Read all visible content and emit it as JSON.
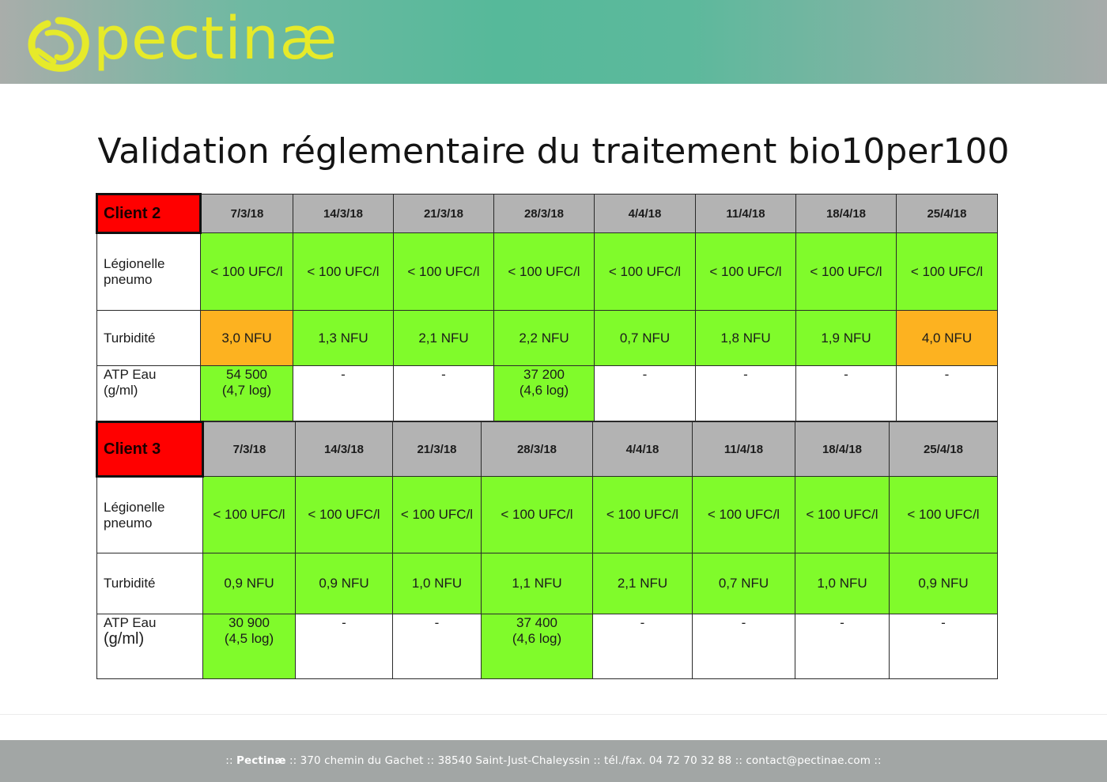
{
  "brand": {
    "name": "pectinæ",
    "logo_color": "#e6ea2a"
  },
  "title": "Validation réglementaire du traitement bio10per100",
  "colors": {
    "ok": "#80fb2b",
    "warning": "#fdb220",
    "client": "#ff0000",
    "header": "#b3b3b3"
  },
  "client2": {
    "name": "Client 2",
    "dates": [
      "7/3/18",
      "14/3/18",
      "21/3/18",
      "28/3/18",
      "4/4/18",
      "11/4/18",
      "18/4/18",
      "25/4/18"
    ],
    "legionelle": {
      "label_line1": "Légionelle",
      "label_line2": "pneumo",
      "values": [
        "< 100 UFC/l",
        "< 100 UFC/l",
        "< 100 UFC/l",
        "< 100 UFC/l",
        "< 100 UFC/l",
        "< 100 UFC/l",
        "< 100 UFC/l",
        "< 100 UFC/l"
      ]
    },
    "turbidite": {
      "label": "Turbidité",
      "values": [
        "3,0 NFU",
        "1,3 NFU",
        "2,1 NFU",
        "2,2 NFU",
        "0,7 NFU",
        "1,8 NFU",
        "1,9 NFU",
        "4,0 NFU"
      ],
      "status": [
        "warning",
        "ok",
        "ok",
        "ok",
        "ok",
        "ok",
        "ok",
        "warning"
      ]
    },
    "atp": {
      "label_line1": "ATP Eau",
      "label_line2": "(g/ml)",
      "values": [
        {
          "line1": "54 500",
          "line2": "(4,7 log)"
        },
        {
          "line1": "-",
          "line2": ""
        },
        {
          "line1": "-",
          "line2": ""
        },
        {
          "line1": "37 200",
          "line2": "(4,6 log)"
        },
        {
          "line1": "-",
          "line2": ""
        },
        {
          "line1": "-",
          "line2": ""
        },
        {
          "line1": "-",
          "line2": ""
        },
        {
          "line1": "-",
          "line2": ""
        }
      ]
    }
  },
  "client3": {
    "name": "Client 3",
    "dates": [
      "7/3/18",
      "14/3/18",
      "21/3/18",
      "28/3/18",
      "4/4/18",
      "11/4/18",
      "18/4/18",
      "25/4/18"
    ],
    "legionelle": {
      "label_line1": "Légionelle",
      "label_line2": "pneumo",
      "values": [
        "< 100 UFC/l",
        "< 100 UFC/l",
        "< 100 UFC/l",
        "< 100 UFC/l",
        "< 100 UFC/l",
        "< 100 UFC/l",
        "< 100 UFC/l",
        "< 100 UFC/l"
      ]
    },
    "turbidite": {
      "label": "Turbidité",
      "values": [
        "0,9 NFU",
        "0,9 NFU",
        "1,0 NFU",
        "1,1 NFU",
        "2,1 NFU",
        "0,7 NFU",
        "1,0 NFU",
        "0,9 NFU"
      ],
      "status": [
        "ok",
        "ok",
        "ok",
        "ok",
        "ok",
        "ok",
        "ok",
        "ok"
      ]
    },
    "atp": {
      "label_line1": "ATP Eau",
      "label_line2": "(g/ml)",
      "values": [
        {
          "line1": "30 900",
          "line2": "(4,5 log)"
        },
        {
          "line1": "-",
          "line2": ""
        },
        {
          "line1": "-",
          "line2": ""
        },
        {
          "line1": "37 400",
          "line2": "(4,6 log)"
        },
        {
          "line1": "-",
          "line2": ""
        },
        {
          "line1": "-",
          "line2": ""
        },
        {
          "line1": "-",
          "line2": ""
        },
        {
          "line1": "-",
          "line2": ""
        }
      ]
    }
  },
  "footer": {
    "pre": ":: ",
    "company": "Pectinæ",
    "rest": " :: 370 chemin du Gachet :: 38540 Saint-Just-Chaleyssin :: tél./fax. 04 72 70 32 88 :: contact@pectinae.com ::"
  }
}
